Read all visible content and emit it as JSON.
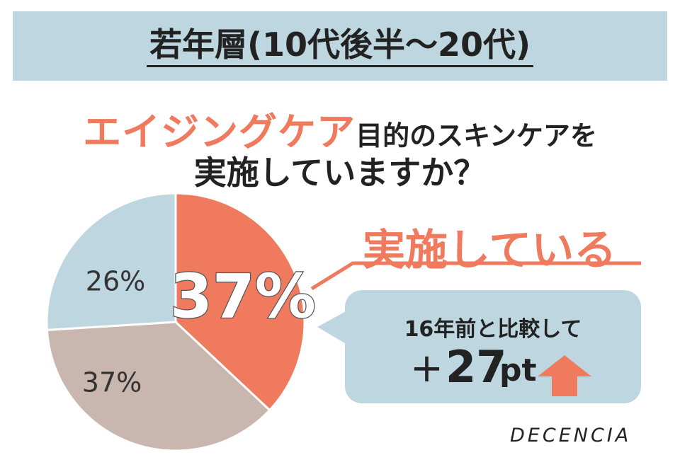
{
  "banner": {
    "title": "若年層(10代後半〜20代)"
  },
  "question": {
    "accent": "エイジングケア",
    "rest": "目的のスキンケアを",
    "line2": "実施していますか？"
  },
  "callout": {
    "title": "実施している",
    "compare_label": "16年前と比較して",
    "change_sign": "+",
    "change_value": "27",
    "change_unit": "pt"
  },
  "brand": "DECENCIA",
  "colors": {
    "accent": "#ef7a5e",
    "blue": "#bdd6df",
    "taupe": "#c9b6ae",
    "text": "#222222"
  },
  "icons": {
    "trend": "up-arrow-icon"
  },
  "chart_data": {
    "type": "pie",
    "slices": [
      {
        "label": "37%",
        "value": 37,
        "color": "#ef7a5e"
      },
      {
        "label": "37%",
        "value": 37,
        "color": "#c9b6ae"
      },
      {
        "label": "26%",
        "value": 26,
        "color": "#bdd6df"
      }
    ],
    "start": "12 o'clock",
    "direction": "clockwise"
  }
}
